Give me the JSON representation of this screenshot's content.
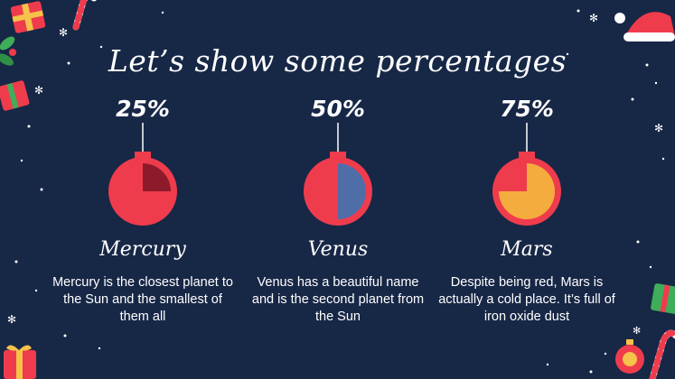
{
  "slide": {
    "title": "Let’s show some percentages"
  },
  "items": [
    {
      "percent_label": "25%",
      "value": 25,
      "name": "Mercury",
      "description": "Mercury is the closest planet to the Sun and the smallest of them all",
      "fill_color": "#8d1a2a"
    },
    {
      "percent_label": "50%",
      "value": 50,
      "name": "Venus",
      "description": "Venus has a beautiful name and is the second planet from the Sun",
      "fill_color": "#4f6ea8"
    },
    {
      "percent_label": "75%",
      "value": 75,
      "name": "Mars",
      "description": "Despite being red, Mars is actually a cold place. It’s full of iron oxide dust",
      "fill_color": "#f5ac3e"
    }
  ],
  "colors": {
    "background": "#172746",
    "ornament": "#ef3c4d",
    "text": "#ffffff"
  }
}
